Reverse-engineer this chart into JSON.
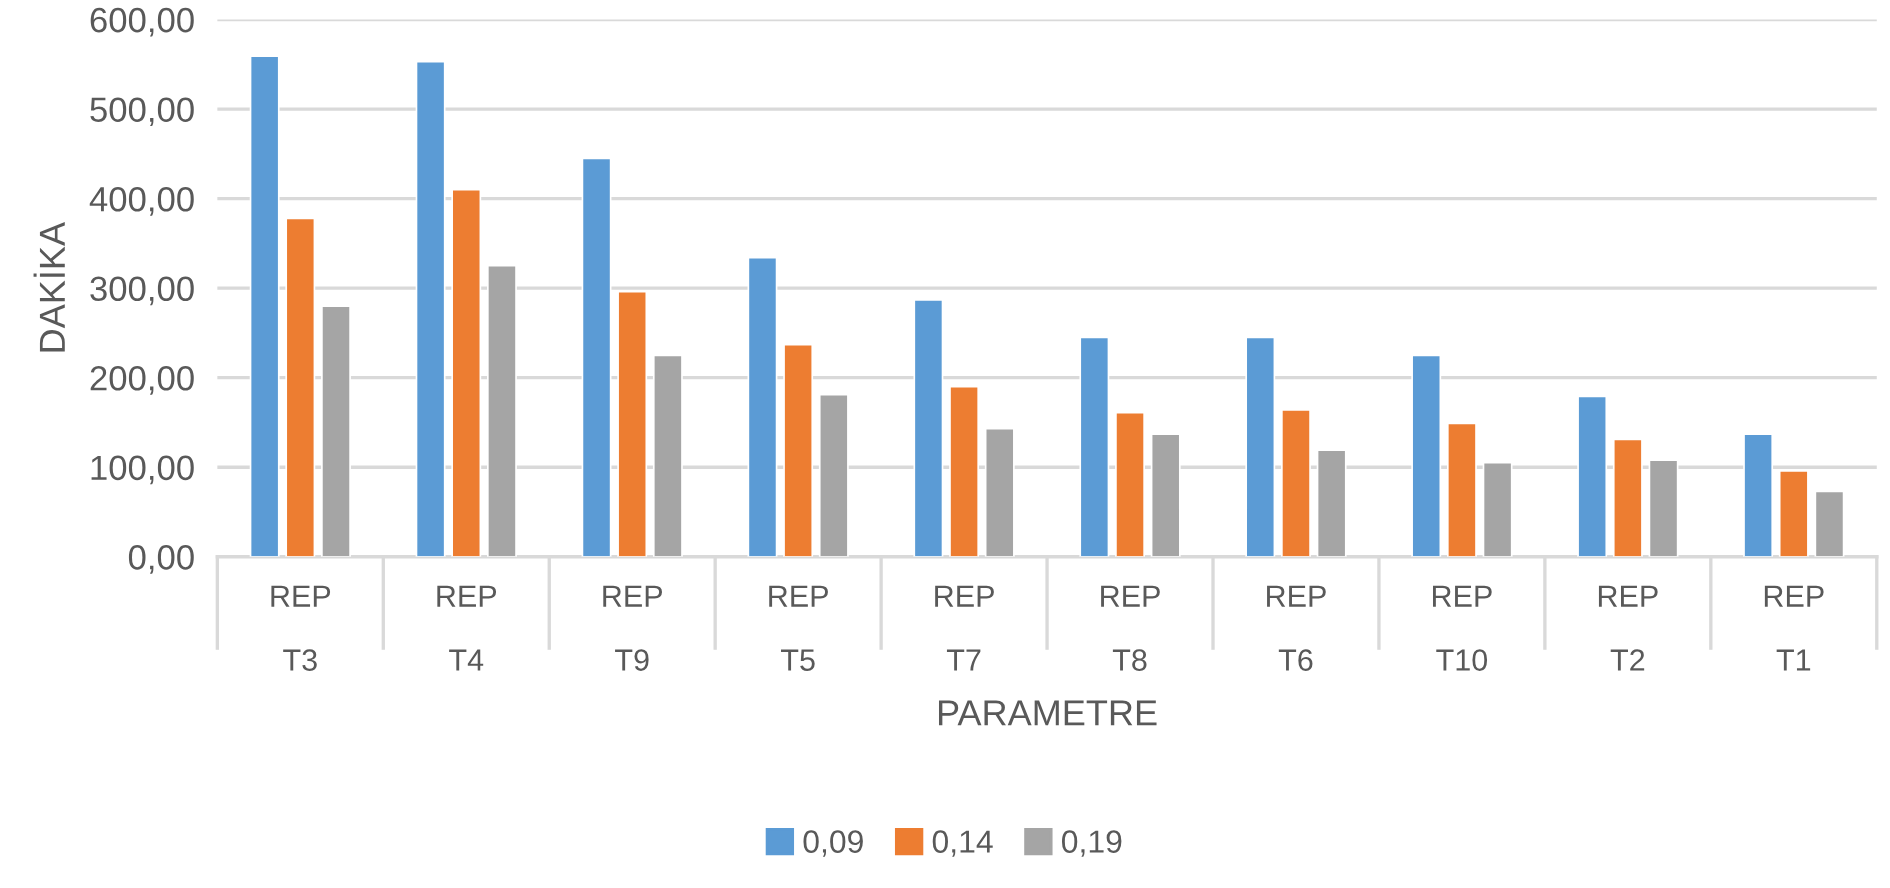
{
  "chart_data": {
    "type": "bar",
    "xlabel": "PARAMETRE",
    "ylabel": "DAKİKA",
    "categories": [
      "REP\nT3",
      "REP\nT4",
      "REP\nT9",
      "REP\nT5",
      "REP\nT7",
      "REP\nT8",
      "REP\nT6",
      "REP\nT10",
      "REP\nT2",
      "REP\nT1"
    ],
    "series": [
      {
        "name": "0,09",
        "color": "#5b9bd5",
        "values": [
          559,
          553,
          445,
          334,
          287,
          245,
          245,
          225,
          179,
          137
        ]
      },
      {
        "name": "0,14",
        "color": "#ed7d31",
        "values": [
          378,
          410,
          296,
          237,
          190,
          161,
          164,
          149,
          131,
          96
        ]
      },
      {
        "name": "0,19",
        "color": "#a5a5a5",
        "values": [
          280,
          325,
          225,
          181,
          143,
          137,
          119,
          105,
          108,
          73
        ]
      }
    ],
    "ylim": [
      0,
      600
    ],
    "yticks": [
      {
        "value": 0,
        "label": "0,00"
      },
      {
        "value": 100,
        "label": "100,00"
      },
      {
        "value": 200,
        "label": "200,00"
      },
      {
        "value": 300,
        "label": "300,00"
      },
      {
        "value": 400,
        "label": "400,00"
      },
      {
        "value": 500,
        "label": "500,00"
      },
      {
        "value": 600,
        "label": "600,00"
      }
    ],
    "grid": "y",
    "legend": "bottom"
  }
}
